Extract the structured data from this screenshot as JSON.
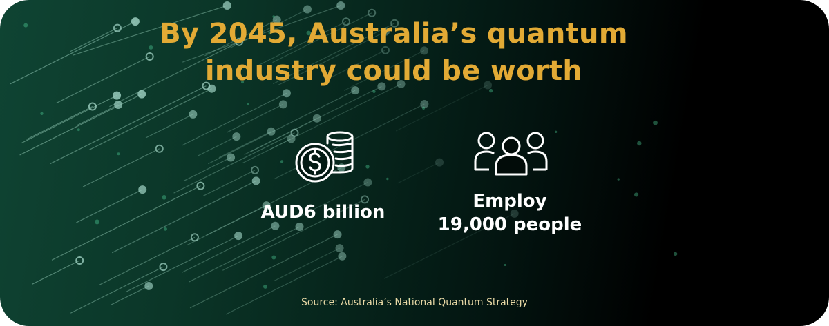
{
  "title": {
    "line1": "By 2045, Australia’s quantum",
    "line2": "industry could be worth"
  },
  "stats": [
    {
      "icon": "coins-dollar-icon",
      "text": "AUD6 billion"
    },
    {
      "icon": "people-group-icon",
      "line1": "Employ",
      "line2": "19,000 people"
    }
  ],
  "source": "Source: Australia’s National Quantum Strategy",
  "colors": {
    "title": "#e2aa35",
    "background_left": "#0f4433",
    "background_right": "#000000",
    "source": "#e9d9a6"
  }
}
